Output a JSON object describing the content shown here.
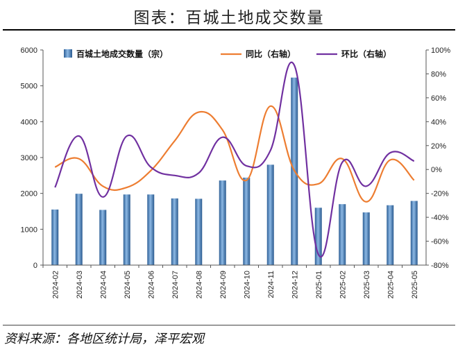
{
  "title": "图表：百城土地成交数量",
  "source": "资料来源：各地区统计局，泽平宏观",
  "chart_data": {
    "type": "bar+line",
    "categories": [
      "2024-02",
      "2024-03",
      "2024-04",
      "2024-05",
      "2024-06",
      "2024-07",
      "2024-08",
      "2024-09",
      "2024-10",
      "2024-11",
      "2024-12",
      "2025-01",
      "2025-02",
      "2025-03",
      "2025-04",
      "2025-05"
    ],
    "series": [
      {
        "name": "百城土地成交数量（宗）",
        "type": "bar",
        "axis": "left",
        "values": [
          1550,
          1990,
          1540,
          1970,
          1970,
          1860,
          1850,
          2360,
          2440,
          2800,
          5230,
          1600,
          1700,
          1470,
          1670,
          1790
        ],
        "color": "#4a86c5"
      },
      {
        "name": "同比（右轴）",
        "type": "line",
        "axis": "right",
        "values": [
          2,
          9,
          -14,
          -15,
          -1,
          24,
          48,
          33,
          -9,
          53,
          -1,
          -12,
          9,
          -27,
          8,
          -9
        ],
        "color": "#ed7d31"
      },
      {
        "name": "环比（右轴）",
        "type": "line",
        "axis": "right",
        "values": [
          -15,
          28,
          -23,
          28,
          2,
          -5,
          -3,
          27,
          3,
          16,
          87,
          -71,
          6,
          -14,
          14,
          7
        ],
        "color": "#7030a0"
      }
    ],
    "left_axis": {
      "min": 0,
      "max": 6000,
      "ticks": [
        "0",
        "1000",
        "2000",
        "3000",
        "4000",
        "5000",
        "6000"
      ]
    },
    "right_axis": {
      "min": -80,
      "max": 100,
      "ticks": [
        "-80%",
        "-60%",
        "-40%",
        "-20%",
        "0%",
        "20%",
        "40%",
        "60%",
        "80%",
        "100%"
      ]
    },
    "legend": "top"
  }
}
